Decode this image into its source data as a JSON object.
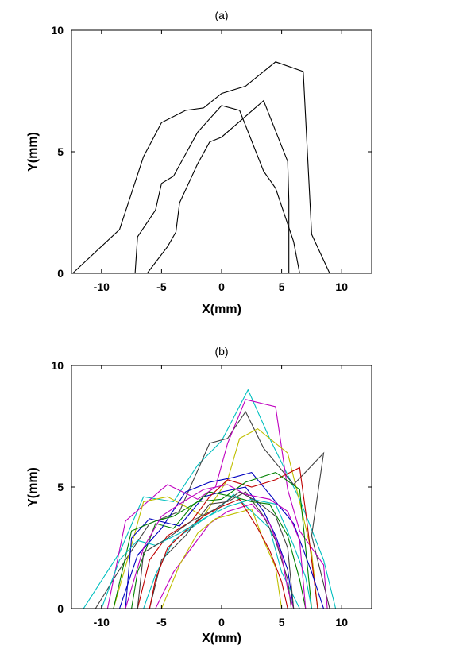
{
  "chart_data": [
    {
      "type": "line",
      "title": "(a)",
      "xlabel": "X(mm)",
      "ylabel": "Y(mm)",
      "xlim": [
        -12.5,
        12.5
      ],
      "ylim": [
        0,
        10
      ],
      "x_ticks": [
        -10,
        -5,
        0,
        5,
        10
      ],
      "y_ticks": [
        0,
        5,
        10
      ],
      "x_tick_labels": [
        "-10",
        "-5",
        "0",
        "5",
        "10"
      ],
      "y_tick_labels": [
        "0",
        "5",
        "10"
      ],
      "grid": false,
      "series": [
        {
          "color": "#000000",
          "points": [
            [
              -12.4,
              0
            ],
            [
              -8.5,
              1.8
            ],
            [
              -6.5,
              4.8
            ],
            [
              -5.0,
              6.2
            ],
            [
              -3.0,
              6.7
            ],
            [
              -1.5,
              6.8
            ],
            [
              0,
              7.4
            ],
            [
              2.0,
              7.7
            ],
            [
              4.5,
              8.7
            ],
            [
              6.8,
              8.3
            ],
            [
              7.5,
              1.6
            ],
            [
              9.0,
              0
            ]
          ]
        },
        {
          "color": "#000000",
          "points": [
            [
              -7.2,
              0
            ],
            [
              -7.0,
              1.5
            ],
            [
              -5.5,
              2.6
            ],
            [
              -5.0,
              3.7
            ],
            [
              -4.0,
              4.0
            ],
            [
              -2.0,
              5.8
            ],
            [
              0,
              6.9
            ],
            [
              1.5,
              6.7
            ],
            [
              3.5,
              4.2
            ],
            [
              4.5,
              3.5
            ],
            [
              6.0,
              1.3
            ],
            [
              6.5,
              0
            ]
          ]
        },
        {
          "color": "#000000",
          "points": [
            [
              -6.2,
              0
            ],
            [
              -4.5,
              1.1
            ],
            [
              -3.8,
              1.7
            ],
            [
              -3.5,
              2.9
            ],
            [
              -2.0,
              4.5
            ],
            [
              -1.0,
              5.4
            ],
            [
              0,
              5.6
            ],
            [
              3.5,
              7.1
            ],
            [
              5.5,
              4.6
            ],
            [
              5.6,
              3.0
            ],
            [
              5.6,
              0
            ]
          ]
        }
      ]
    },
    {
      "type": "line",
      "title": "(b)",
      "xlabel": "X(mm)",
      "ylabel": "Y(mm)",
      "xlim": [
        -12.5,
        12.5
      ],
      "ylim": [
        0,
        10
      ],
      "x_ticks": [
        -10,
        -5,
        0,
        5,
        10
      ],
      "y_ticks": [
        0,
        5,
        10
      ],
      "x_tick_labels": [
        "-10",
        "-5",
        "0",
        "5",
        "10"
      ],
      "y_tick_labels": [
        "0",
        "5",
        "10"
      ],
      "grid": false,
      "series": [
        {
          "color": "#00bfbf",
          "points": [
            [
              -11.5,
              0
            ],
            [
              -8.5,
              2.3
            ],
            [
              -6.5,
              4.6
            ],
            [
              -4.0,
              4.4
            ],
            [
              -2.0,
              5.9
            ],
            [
              0,
              6.9
            ],
            [
              2.2,
              9.0
            ],
            [
              4.0,
              7.0
            ],
            [
              6.5,
              4.5
            ],
            [
              8.5,
              2.0
            ],
            [
              9.5,
              0
            ]
          ]
        },
        {
          "color": "#404040",
          "points": [
            [
              -10.5,
              0
            ],
            [
              -8.0,
              2.0
            ],
            [
              -6.0,
              3.5
            ],
            [
              -3.5,
              4.0
            ],
            [
              -1.0,
              6.8
            ],
            [
              0.5,
              7.0
            ],
            [
              2.0,
              8.1
            ],
            [
              3.5,
              6.6
            ],
            [
              6.0,
              5.1
            ],
            [
              8.5,
              6.4
            ],
            [
              7.5,
              3.0
            ],
            [
              9.0,
              0
            ]
          ]
        },
        {
          "color": "#bf00bf",
          "points": [
            [
              -9.5,
              0
            ],
            [
              -8.0,
              3.6
            ],
            [
              -5.0,
              4.9
            ],
            [
              -4.5,
              5.1
            ],
            [
              -2.0,
              4.5
            ],
            [
              -0.5,
              5.0
            ],
            [
              0.5,
              6.8
            ],
            [
              2.0,
              8.6
            ],
            [
              4.5,
              8.3
            ],
            [
              5.5,
              4.9
            ],
            [
              6.5,
              3.2
            ],
            [
              8.5,
              1.8
            ],
            [
              8.8,
              0
            ]
          ]
        },
        {
          "color": "#bfbf00",
          "points": [
            [
              -9.0,
              0
            ],
            [
              -7.5,
              2.6
            ],
            [
              -6.5,
              4.4
            ],
            [
              -4.5,
              4.6
            ],
            [
              -1.5,
              3.8
            ],
            [
              0.5,
              5.3
            ],
            [
              1.5,
              7.0
            ],
            [
              3.0,
              7.4
            ],
            [
              5.5,
              6.4
            ],
            [
              6.5,
              4.4
            ],
            [
              7.5,
              2.3
            ],
            [
              8.0,
              0
            ]
          ]
        },
        {
          "color": "#0000bf",
          "points": [
            [
              -8.0,
              0
            ],
            [
              -7.5,
              2.9
            ],
            [
              -6.0,
              3.7
            ],
            [
              -3.5,
              3.4
            ],
            [
              -1.5,
              4.6
            ],
            [
              0,
              4.8
            ],
            [
              2.0,
              5.0
            ],
            [
              3.5,
              4.0
            ],
            [
              4.5,
              3.0
            ],
            [
              5.5,
              1.6
            ],
            [
              6.0,
              0
            ]
          ]
        },
        {
          "color": "#008000",
          "points": [
            [
              -7.5,
              0
            ],
            [
              -7.0,
              1.5
            ],
            [
              -5.5,
              3.5
            ],
            [
              -4.0,
              3.3
            ],
            [
              -2.5,
              4.2
            ],
            [
              -1.0,
              4.8
            ],
            [
              1.0,
              4.6
            ],
            [
              2.5,
              4.4
            ],
            [
              4.0,
              4.3
            ],
            [
              5.5,
              3.0
            ],
            [
              6.5,
              1.2
            ],
            [
              7.0,
              0
            ]
          ]
        },
        {
          "color": "#bf0000",
          "points": [
            [
              -7.0,
              0
            ],
            [
              -6.0,
              2.0
            ],
            [
              -4.5,
              3.0
            ],
            [
              -2.5,
              3.6
            ],
            [
              -1.0,
              4.6
            ],
            [
              0.5,
              5.3
            ],
            [
              2.5,
              5.0
            ],
            [
              4.5,
              5.3
            ],
            [
              6.5,
              5.8
            ],
            [
              7.0,
              4.0
            ],
            [
              7.5,
              2.0
            ],
            [
              8.0,
              0
            ]
          ]
        },
        {
          "color": "#00bfbf",
          "points": [
            [
              -6.5,
              0
            ],
            [
              -5.5,
              1.4
            ],
            [
              -4.0,
              2.8
            ],
            [
              -2.0,
              3.5
            ],
            [
              -0.5,
              4.0
            ],
            [
              1.0,
              4.7
            ],
            [
              2.5,
              4.0
            ],
            [
              4.0,
              3.3
            ],
            [
              5.0,
              1.5
            ],
            [
              6.5,
              0
            ]
          ]
        },
        {
          "color": "#404040",
          "points": [
            [
              -6.0,
              0
            ],
            [
              -5.0,
              2.0
            ],
            [
              -3.0,
              3.0
            ],
            [
              -1.0,
              4.3
            ],
            [
              0.5,
              4.4
            ],
            [
              2.0,
              4.8
            ],
            [
              3.5,
              3.8
            ],
            [
              4.5,
              2.8
            ],
            [
              5.5,
              1.2
            ],
            [
              5.8,
              0
            ]
          ]
        },
        {
          "color": "#bf00bf",
          "points": [
            [
              -5.5,
              0
            ],
            [
              -4.0,
              1.5
            ],
            [
              -2.5,
              2.5
            ],
            [
              -1.0,
              3.5
            ],
            [
              0.5,
              4.0
            ],
            [
              2.5,
              4.3
            ],
            [
              4.0,
              3.5
            ],
            [
              5.0,
              2.2
            ],
            [
              5.5,
              0.8
            ],
            [
              6.0,
              0
            ]
          ]
        },
        {
          "color": "#bfbf00",
          "points": [
            [
              -5.0,
              0
            ],
            [
              -3.5,
              1.8
            ],
            [
              -2.0,
              3.1
            ],
            [
              -0.5,
              3.7
            ],
            [
              1.0,
              3.9
            ],
            [
              2.5,
              4.1
            ],
            [
              3.5,
              2.8
            ],
            [
              4.5,
              1.7
            ],
            [
              5.0,
              0
            ]
          ]
        },
        {
          "color": "#0000bf",
          "points": [
            [
              -8.5,
              0
            ],
            [
              -7.0,
              2.2
            ],
            [
              -5.0,
              3.3
            ],
            [
              -3.0,
              4.8
            ],
            [
              -1.0,
              5.2
            ],
            [
              1.0,
              5.4
            ],
            [
              2.5,
              5.6
            ],
            [
              4.0,
              4.7
            ],
            [
              6.0,
              3.5
            ],
            [
              7.5,
              1.5
            ],
            [
              8.5,
              0
            ]
          ]
        },
        {
          "color": "#008000",
          "points": [
            [
              -9.0,
              0
            ],
            [
              -7.5,
              3.2
            ],
            [
              -5.5,
              3.6
            ],
            [
              -4.0,
              3.8
            ],
            [
              -2.0,
              4.4
            ],
            [
              0,
              4.5
            ],
            [
              2.0,
              5.2
            ],
            [
              4.5,
              5.6
            ],
            [
              6.5,
              4.9
            ],
            [
              7.0,
              2.5
            ],
            [
              7.5,
              0
            ]
          ]
        },
        {
          "color": "#bf0000",
          "points": [
            [
              -6.0,
              0
            ],
            [
              -5.5,
              1.2
            ],
            [
              -4.5,
              2.5
            ],
            [
              -3.0,
              3.2
            ],
            [
              -1.5,
              3.8
            ],
            [
              0,
              4.2
            ],
            [
              1.5,
              4.5
            ],
            [
              3.0,
              3.3
            ],
            [
              4.0,
              2.4
            ],
            [
              5.0,
              1.1
            ],
            [
              5.5,
              0
            ]
          ]
        },
        {
          "color": "#00bfbf",
          "points": [
            [
              -10.0,
              0
            ],
            [
              -8.5,
              2.0
            ],
            [
              -7.0,
              2.8
            ],
            [
              -5.5,
              2.6
            ],
            [
              -3.5,
              3.1
            ],
            [
              -1.5,
              3.7
            ],
            [
              0.5,
              4.2
            ],
            [
              2.5,
              4.5
            ],
            [
              4.5,
              4.3
            ],
            [
              6.0,
              2.6
            ],
            [
              7.0,
              1.3
            ],
            [
              7.5,
              0
            ]
          ]
        },
        {
          "color": "#404040",
          "points": [
            [
              -7.0,
              0
            ],
            [
              -6.5,
              2.3
            ],
            [
              -4.5,
              2.9
            ],
            [
              -2.5,
              3.6
            ],
            [
              -0.5,
              4.1
            ],
            [
              1.5,
              4.8
            ],
            [
              3.0,
              4.4
            ],
            [
              4.5,
              3.8
            ],
            [
              5.5,
              2.5
            ],
            [
              6.0,
              0
            ]
          ]
        },
        {
          "color": "#bf00bf",
          "points": [
            [
              -8.0,
              0
            ],
            [
              -6.5,
              2.5
            ],
            [
              -5.0,
              3.8
            ],
            [
              -3.5,
              4.3
            ],
            [
              -1.5,
              4.9
            ],
            [
              0.5,
              5.1
            ],
            [
              2.0,
              4.7
            ],
            [
              4.0,
              4.5
            ],
            [
              5.5,
              4.0
            ],
            [
              6.5,
              2.8
            ],
            [
              7.0,
              0
            ]
          ]
        }
      ]
    }
  ]
}
